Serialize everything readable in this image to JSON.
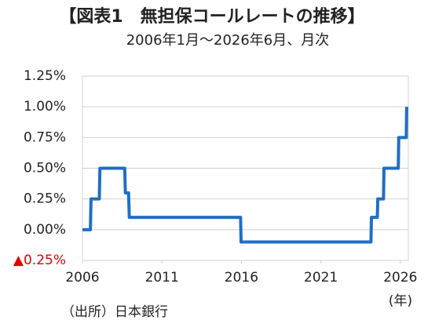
{
  "chart_data": {
    "type": "line",
    "title": "【図表1　無担保コールレートの推移】",
    "subtitle": "2006年1月～2026年6月、月次",
    "x_unit": "(年)",
    "source": "（出所）日本銀行",
    "x": [
      2006.0,
      2006.5,
      2006.54,
      2007.06,
      2007.1,
      2008.66,
      2008.7,
      2008.9,
      2008.95,
      2015.95,
      2015.98,
      2024.15,
      2024.18,
      2024.55,
      2024.58,
      2024.94,
      2024.97,
      2025.87,
      2025.9,
      2026.37,
      2026.4
    ],
    "series": [
      {
        "name": "無担保コールレート",
        "color": "#1f6fc5",
        "values": [
          0,
          0,
          0.25,
          0.25,
          0.5,
          0.5,
          0.3,
          0.3,
          0.1,
          0.1,
          -0.1,
          -0.1,
          0.1,
          0.1,
          0.25,
          0.25,
          0.5,
          0.5,
          0.75,
          0.75,
          1.0
        ]
      }
    ],
    "xlim": [
      2006,
      2026.5
    ],
    "xticks": [
      2006,
      2011,
      2016,
      2021,
      2026
    ],
    "ylim": [
      -0.25,
      1.25
    ],
    "yticks": [
      {
        "value": -0.25,
        "label": "▲0.25%"
      },
      {
        "value": 0,
        "label": "0.00%"
      },
      {
        "value": 0.25,
        "label": "0.25%"
      },
      {
        "value": 0.5,
        "label": "0.50%"
      },
      {
        "value": 0.75,
        "label": "0.75%"
      },
      {
        "value": 1.0,
        "label": "1.00%"
      },
      {
        "value": 1.25,
        "label": "1.25%"
      }
    ],
    "negative_tick_color": "#e00000",
    "grid": true
  }
}
